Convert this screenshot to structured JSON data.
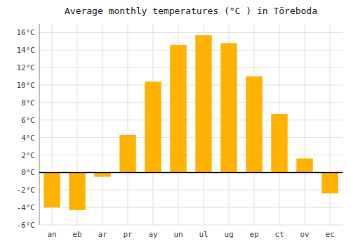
{
  "chart_data": {
    "type": "bar",
    "title": "Average monthly temperatures (°C ) in Töreboda",
    "categories": [
      "an",
      "eb",
      "ar",
      "pr",
      "ay",
      "un",
      "ul",
      "ug",
      "ep",
      "ct",
      "ov",
      "ec"
    ],
    "values": [
      -4.0,
      -4.3,
      -0.5,
      4.3,
      10.4,
      14.6,
      15.7,
      14.8,
      11.0,
      6.7,
      1.6,
      -2.4
    ],
    "color": "#FFB300",
    "ylim": [
      -6,
      17
    ],
    "yticks": [
      {
        "value": -6,
        "label": "-6°C"
      },
      {
        "value": -4,
        "label": "-4°C"
      },
      {
        "value": -2,
        "label": "-2°C"
      },
      {
        "value": 0,
        "label": "0°C"
      },
      {
        "value": 2,
        "label": "2°C"
      },
      {
        "value": 4,
        "label": "4°C"
      },
      {
        "value": 6,
        "label": "6°C"
      },
      {
        "value": 8,
        "label": "8°C"
      },
      {
        "value": 10,
        "label": "10°C"
      },
      {
        "value": 12,
        "label": "12°C"
      },
      {
        "value": 14,
        "label": "14°C"
      },
      {
        "value": 16,
        "label": "16°C"
      }
    ],
    "grid": true
  }
}
